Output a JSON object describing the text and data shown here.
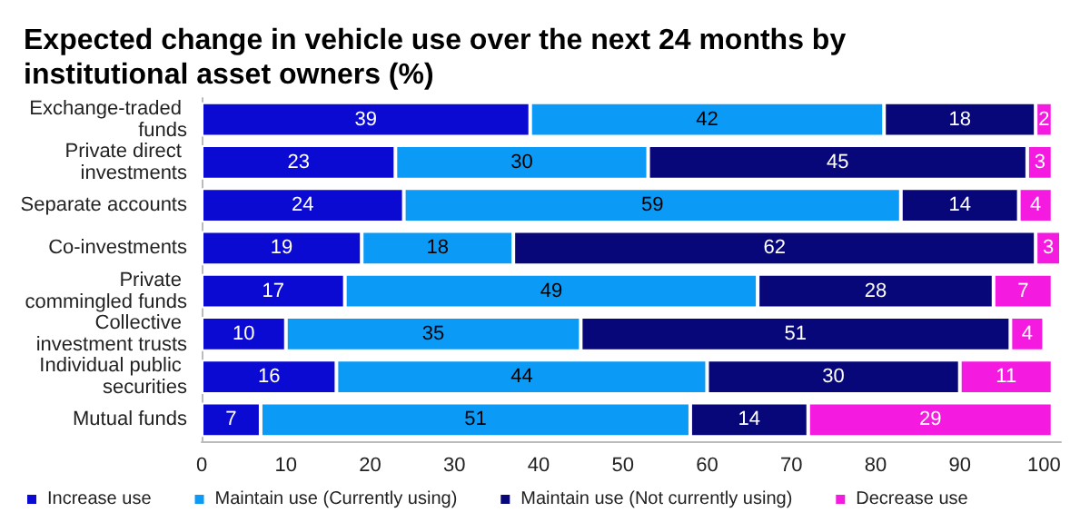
{
  "chart_data": {
    "type": "bar",
    "orientation": "horizontal",
    "stacked": true,
    "title": "Expected change in vehicle use over the next 24 months by institutional asset owners (%)",
    "categories": [
      "Exchange-traded funds",
      "Private direct investments",
      "Separate accounts",
      "Co-investments",
      "Private commingled funds",
      "Collective investment trusts",
      "Individual public securities",
      "Mutual funds"
    ],
    "series": [
      {
        "name": "Increase use",
        "color": "#0a0ad2",
        "values": [
          39,
          23,
          24,
          19,
          17,
          10,
          16,
          7
        ]
      },
      {
        "name": "Maintain use (Currently using)",
        "color": "#0b9af5",
        "values": [
          42,
          30,
          59,
          18,
          49,
          35,
          44,
          51
        ]
      },
      {
        "name": "Maintain use (Not currently using)",
        "color": "#07077a",
        "values": [
          18,
          45,
          14,
          62,
          28,
          51,
          30,
          14
        ]
      },
      {
        "name": "Decrease use",
        "color": "#f51ae0",
        "values": [
          2,
          3,
          4,
          3,
          7,
          4,
          11,
          29
        ]
      }
    ],
    "xlim": [
      0,
      102
    ],
    "xticks": [
      0,
      10,
      20,
      30,
      40,
      50,
      60,
      70,
      80,
      90,
      100
    ],
    "data_labels": true,
    "grid": false,
    "legend": "bottom left"
  }
}
